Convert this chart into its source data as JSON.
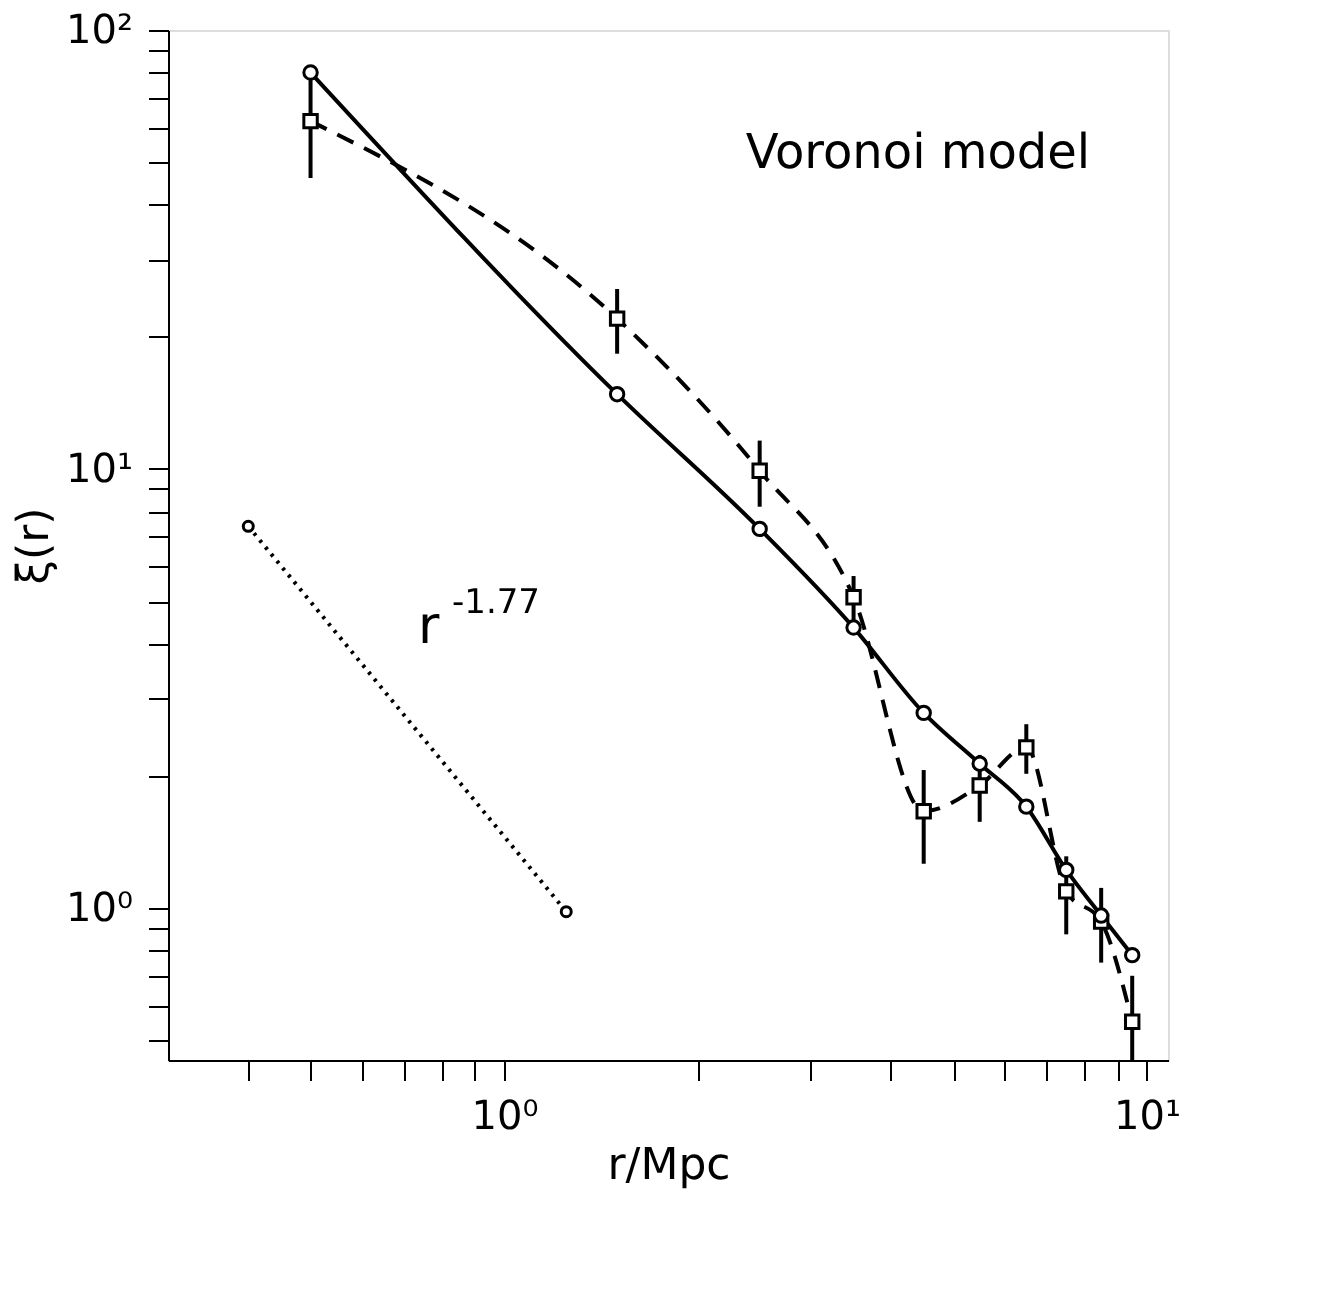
{
  "chart_data": {
    "type": "line",
    "xlabel": "r/Mpc",
    "ylabel": "ξ(r)",
    "annotations": [
      "Voronoi model",
      "r$^{-1.77}$"
    ],
    "log": "xy",
    "grid": false,
    "xlim": [
      0.3,
      10.8
    ],
    "ylim": [
      0.45,
      100
    ],
    "xticks": [
      {
        "value": 0.4,
        "label": null
      },
      {
        "value": 0.5,
        "label": null
      },
      {
        "value": 0.6,
        "label": null
      },
      {
        "value": 0.7,
        "label": null
      },
      {
        "value": 0.8,
        "label": null
      },
      {
        "value": 0.9,
        "label": null
      },
      {
        "value": 1,
        "label": "10⁰"
      },
      {
        "value": 2,
        "label": null
      },
      {
        "value": 3,
        "label": null
      },
      {
        "value": 4,
        "label": null
      },
      {
        "value": 5,
        "label": null
      },
      {
        "value": 6,
        "label": null
      },
      {
        "value": 7,
        "label": null
      },
      {
        "value": 8,
        "label": null
      },
      {
        "value": 9,
        "label": null
      },
      {
        "value": 10,
        "label": "10¹"
      }
    ],
    "yticks": [
      {
        "value": 0.5,
        "label": null
      },
      {
        "value": 0.6,
        "label": null
      },
      {
        "value": 0.7,
        "label": null
      },
      {
        "value": 0.8,
        "label": null
      },
      {
        "value": 0.9,
        "label": null
      },
      {
        "value": 1,
        "label": "10⁰"
      },
      {
        "value": 2,
        "label": null
      },
      {
        "value": 3,
        "label": null
      },
      {
        "value": 4,
        "label": null
      },
      {
        "value": 5,
        "label": null
      },
      {
        "value": 6,
        "label": null
      },
      {
        "value": 7,
        "label": null
      },
      {
        "value": 8,
        "label": null
      },
      {
        "value": 9,
        "label": null
      },
      {
        "value": 10,
        "label": "10¹"
      },
      {
        "value": 20,
        "label": null
      },
      {
        "value": 30,
        "label": null
      },
      {
        "value": 40,
        "label": null
      },
      {
        "value": 50,
        "label": null
      },
      {
        "value": 60,
        "label": null
      },
      {
        "value": 70,
        "label": null
      },
      {
        "value": 80,
        "label": null
      },
      {
        "value": 90,
        "label": null
      },
      {
        "value": 100,
        "label": "10²"
      }
    ],
    "x": [
      0.5,
      1.5,
      2.5,
      3.5,
      4.5,
      5.5,
      6.5,
      7.5,
      8.5,
      9.5
    ],
    "series": [
      {
        "color": "#000000",
        "line_style": "solid",
        "marker": "circle",
        "values": [
          80,
          14.8,
          7.3,
          4.35,
          2.78,
          2.13,
          1.7,
          1.22,
          0.96,
          0.78
        ]
      },
      {
        "color": "#000000",
        "line_style": "dashed",
        "marker": "square",
        "values": [
          62,
          22,
          9.9,
          5.1,
          1.66,
          1.9,
          2.32,
          1.09,
          0.93,
          0.55
        ],
        "errors": [
          16,
          3.7,
          1.7,
          0.6,
          0.4,
          0.33,
          0.3,
          0.22,
          0.18,
          [
            0.45,
            0.7
          ]
        ]
      },
      {
        "color": "#000000",
        "line_style": "dotted",
        "marker": "circle",
        "x": [
          0.4,
          1.25
        ],
        "values": [
          7.4,
          0.98
        ]
      }
    ]
  }
}
